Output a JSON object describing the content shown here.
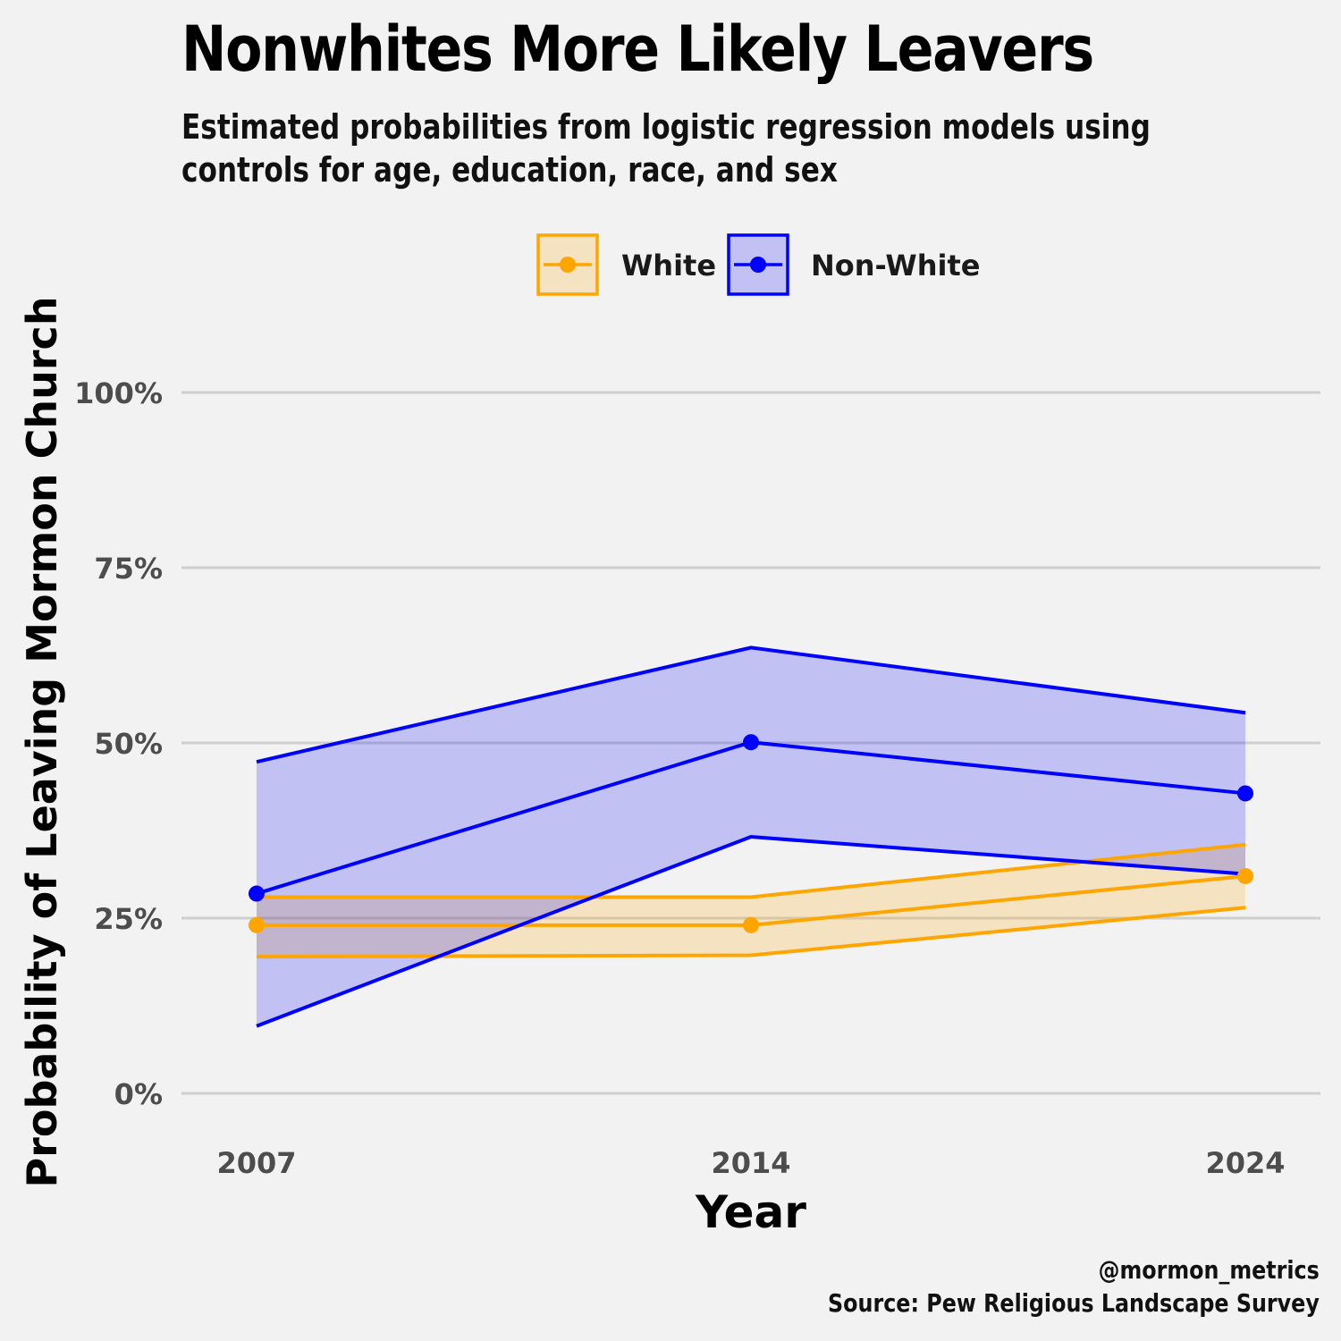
{
  "chart_data": {
    "type": "line",
    "title": "Nonwhites More Likely Leavers",
    "subtitle_lines": [
      "Estimated probabilities from logistic regression models using",
      "controls for age, education, race, and sex"
    ],
    "xlabel": "Year",
    "ylabel": "Probability of Leaving Mormon Church",
    "x": [
      "2007",
      "2014",
      "2024"
    ],
    "y_ticks": [
      0,
      25,
      50,
      75,
      100
    ],
    "y_tick_labels": [
      "0%",
      "25%",
      "50%",
      "75%",
      "100%"
    ],
    "ylim": [
      0,
      100
    ],
    "grid": "horizontal",
    "legend_position": "top",
    "series": [
      {
        "name": "White",
        "color": "#FFA500",
        "fill": "rgba(255,165,0,0.2)",
        "values": [
          24,
          24,
          31
        ],
        "lower": [
          19.5,
          19.7,
          26.5
        ],
        "upper": [
          28,
          28,
          35.5
        ]
      },
      {
        "name": "Non-White",
        "color": "#0000FF",
        "fill": "rgba(0,0,255,0.2)",
        "values": [
          28.5,
          50.1,
          42.8
        ],
        "lower": [
          9.6,
          36.6,
          31.3
        ],
        "upper": [
          47.3,
          63.6,
          54.3
        ]
      }
    ],
    "footer_lines": [
      "@mormon_metrics",
      "Source: Pew Religious Landscape Survey"
    ]
  }
}
